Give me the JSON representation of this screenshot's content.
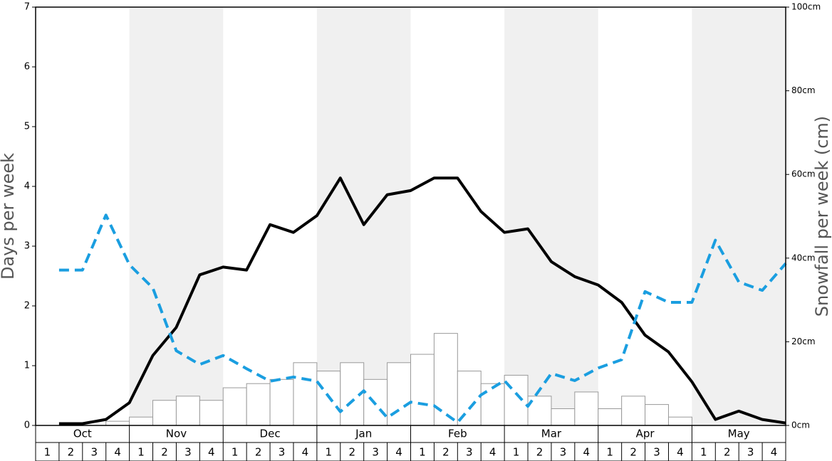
{
  "chart_data": {
    "type": "bar-line",
    "y_label": "Days per week",
    "y2_label": "Snowfall per week (cm)",
    "months": [
      "Oct",
      "Nov",
      "Dec",
      "Jan",
      "Feb",
      "Mar",
      "Apr",
      "May"
    ],
    "shaded_months": [
      false,
      true,
      false,
      true,
      false,
      true,
      false,
      true
    ],
    "categories": [
      "1",
      "2",
      "3",
      "4",
      "1",
      "2",
      "3",
      "4",
      "1",
      "2",
      "3",
      "4",
      "1",
      "2",
      "3",
      "4",
      "1",
      "2",
      "3",
      "4",
      "1",
      "2",
      "3",
      "4",
      "1",
      "2",
      "3",
      "4",
      "1",
      "2",
      "3",
      "4"
    ],
    "ylim": [
      0,
      7
    ],
    "yticks": [
      0,
      1,
      2,
      3,
      4,
      5,
      6,
      7
    ],
    "y2lim": [
      0,
      100
    ],
    "y2ticks": [
      {
        "value": 0,
        "label": "0cm"
      },
      {
        "value": 20,
        "label": "20cm"
      },
      {
        "value": 40,
        "label": "40cm"
      },
      {
        "value": 60,
        "label": "60cm"
      },
      {
        "value": 80,
        "label": "80cm"
      },
      {
        "value": 100,
        "label": "100cm"
      }
    ],
    "series": [
      {
        "kind": "bar",
        "axis": "y2",
        "color": "#ffffff",
        "edge": "#999999",
        "values": [
          0,
          0,
          0,
          1,
          2,
          6,
          7,
          6,
          9,
          10,
          11,
          15,
          13,
          15,
          11,
          15,
          17,
          22,
          13,
          10,
          12,
          7,
          4,
          8,
          4,
          7,
          5,
          2,
          0,
          0,
          0,
          0
        ]
      },
      {
        "kind": "line",
        "color": "#000000",
        "dashed": false,
        "values": [
          0.03,
          0.03,
          0.1,
          0.38,
          1.17,
          1.64,
          2.52,
          2.65,
          2.6,
          3.36,
          3.23,
          3.51,
          4.14,
          3.36,
          3.86,
          3.93,
          4.14,
          4.14,
          3.58,
          3.23,
          3.29,
          2.74,
          2.49,
          2.35,
          2.06,
          1.51,
          1.23,
          0.73,
          0.1,
          0.24,
          0.1,
          0.04
        ]
      },
      {
        "kind": "line",
        "color": "#1a9ee0",
        "dashed": true,
        "values": [
          2.6,
          2.6,
          3.52,
          2.69,
          2.3,
          1.25,
          1.02,
          1.17,
          0.95,
          0.74,
          0.81,
          0.74,
          0.23,
          0.58,
          0.13,
          0.39,
          0.33,
          0.05,
          0.51,
          0.75,
          0.32,
          0.87,
          0.75,
          0.96,
          1.1,
          2.24,
          2.06,
          2.06,
          3.1,
          2.4,
          2.26,
          2.71
        ]
      }
    ]
  }
}
